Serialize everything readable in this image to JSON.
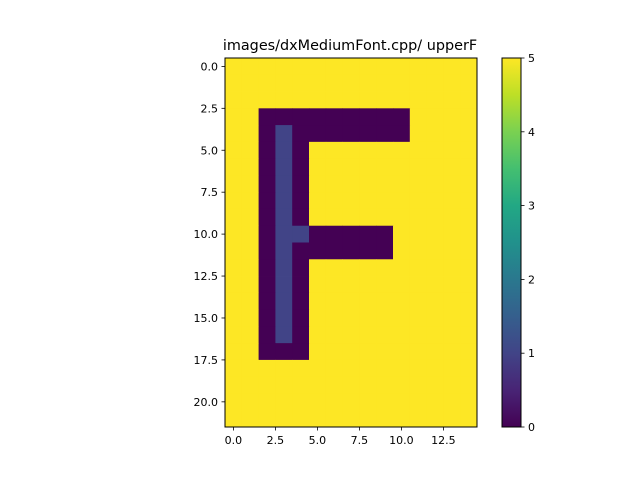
{
  "chart_data": {
    "type": "heatmap",
    "title": "images/dxMediumFont.cpp/ upperF",
    "xlabel": "",
    "ylabel": "",
    "rows": 22,
    "cols": 15,
    "x_ticks": [
      0.0,
      2.5,
      5.0,
      7.5,
      10.0,
      12.5
    ],
    "x_tick_labels": [
      "0.0",
      "2.5",
      "5.0",
      "7.5",
      "10.0",
      "12.5"
    ],
    "y_ticks": [
      0.0,
      2.5,
      5.0,
      7.5,
      10.0,
      12.5,
      15.0,
      17.5,
      20.0
    ],
    "y_tick_labels": [
      "0.0",
      "2.5",
      "5.0",
      "7.5",
      "10.0",
      "12.5",
      "15.0",
      "17.5",
      "20.0"
    ],
    "colorbar": {
      "vmin": 0,
      "vmax": 5,
      "ticks": [
        0,
        1,
        2,
        3,
        4,
        5
      ],
      "tick_labels": [
        "0",
        "1",
        "2",
        "3",
        "4",
        "5"
      ],
      "colormap": "viridis"
    },
    "values": [
      [
        5,
        5,
        5,
        5,
        5,
        5,
        5,
        5,
        5,
        5,
        5,
        5,
        5,
        5,
        5
      ],
      [
        5,
        5,
        5,
        5,
        5,
        5,
        5,
        5,
        5,
        5,
        5,
        5,
        5,
        5,
        5
      ],
      [
        5,
        5,
        5,
        5,
        5,
        5,
        5,
        5,
        5,
        5,
        5,
        5,
        5,
        5,
        5
      ],
      [
        5,
        5,
        0,
        0,
        0,
        0,
        0,
        0,
        0,
        0,
        0,
        5,
        5,
        5,
        5
      ],
      [
        5,
        5,
        0,
        1,
        0,
        0,
        0,
        0,
        0,
        0,
        0,
        5,
        5,
        5,
        5
      ],
      [
        5,
        5,
        0,
        1,
        0,
        5,
        5,
        5,
        5,
        5,
        5,
        5,
        5,
        5,
        5
      ],
      [
        5,
        5,
        0,
        1,
        0,
        5,
        5,
        5,
        5,
        5,
        5,
        5,
        5,
        5,
        5
      ],
      [
        5,
        5,
        0,
        1,
        0,
        5,
        5,
        5,
        5,
        5,
        5,
        5,
        5,
        5,
        5
      ],
      [
        5,
        5,
        0,
        1,
        0,
        5,
        5,
        5,
        5,
        5,
        5,
        5,
        5,
        5,
        5
      ],
      [
        5,
        5,
        0,
        1,
        0,
        5,
        5,
        5,
        5,
        5,
        5,
        5,
        5,
        5,
        5
      ],
      [
        5,
        5,
        0,
        1,
        1,
        0,
        0,
        0,
        0,
        0,
        5,
        5,
        5,
        5,
        5
      ],
      [
        5,
        5,
        0,
        1,
        0,
        0,
        0,
        0,
        0,
        0,
        5,
        5,
        5,
        5,
        5
      ],
      [
        5,
        5,
        0,
        1,
        0,
        5,
        5,
        5,
        5,
        5,
        5,
        5,
        5,
        5,
        5
      ],
      [
        5,
        5,
        0,
        1,
        0,
        5,
        5,
        5,
        5,
        5,
        5,
        5,
        5,
        5,
        5
      ],
      [
        5,
        5,
        0,
        1,
        0,
        5,
        5,
        5,
        5,
        5,
        5,
        5,
        5,
        5,
        5
      ],
      [
        5,
        5,
        0,
        1,
        0,
        5,
        5,
        5,
        5,
        5,
        5,
        5,
        5,
        5,
        5
      ],
      [
        5,
        5,
        0,
        1,
        0,
        5,
        5,
        5,
        5,
        5,
        5,
        5,
        5,
        5,
        5
      ],
      [
        5,
        5,
        0,
        0,
        0,
        5,
        5,
        5,
        5,
        5,
        5,
        5,
        5,
        5,
        5
      ],
      [
        5,
        5,
        5,
        5,
        5,
        5,
        5,
        5,
        5,
        5,
        5,
        5,
        5,
        5,
        5
      ],
      [
        5,
        5,
        5,
        5,
        5,
        5,
        5,
        5,
        5,
        5,
        5,
        5,
        5,
        5,
        5
      ],
      [
        5,
        5,
        5,
        5,
        5,
        5,
        5,
        5,
        5,
        5,
        5,
        5,
        5,
        5,
        5
      ],
      [
        5,
        5,
        5,
        5,
        5,
        5,
        5,
        5,
        5,
        5,
        5,
        5,
        5,
        5,
        5
      ]
    ]
  }
}
